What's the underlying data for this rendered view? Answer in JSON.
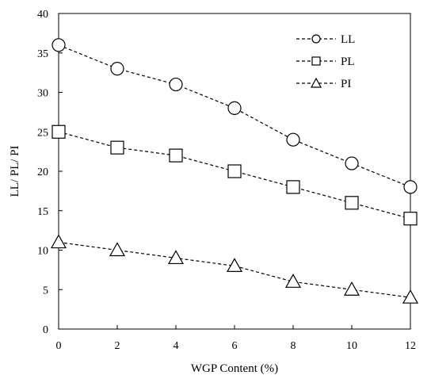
{
  "chart_data": {
    "type": "line",
    "xlabel": "WGP Content (%)",
    "ylabel": "LL/ PL/ PI",
    "xlim": [
      0,
      12
    ],
    "ylim": [
      0,
      40
    ],
    "x_ticks": [
      0,
      2,
      4,
      6,
      8,
      10,
      12
    ],
    "y_ticks": [
      0,
      5,
      10,
      15,
      20,
      25,
      30,
      35,
      40
    ],
    "grid": false,
    "legend_position": "top-right",
    "x": [
      0,
      2,
      4,
      6,
      8,
      10,
      12
    ],
    "series": [
      {
        "name": "LL",
        "marker": "circle",
        "values": [
          36,
          33,
          31,
          28,
          24,
          21,
          18
        ]
      },
      {
        "name": "PL",
        "marker": "square",
        "values": [
          25,
          23,
          22,
          20,
          18,
          16,
          14
        ]
      },
      {
        "name": "PI",
        "marker": "triangle",
        "values": [
          11,
          10,
          9,
          8,
          6,
          5,
          4
        ]
      }
    ],
    "line_style": "dashed",
    "line_color": "#000000"
  }
}
